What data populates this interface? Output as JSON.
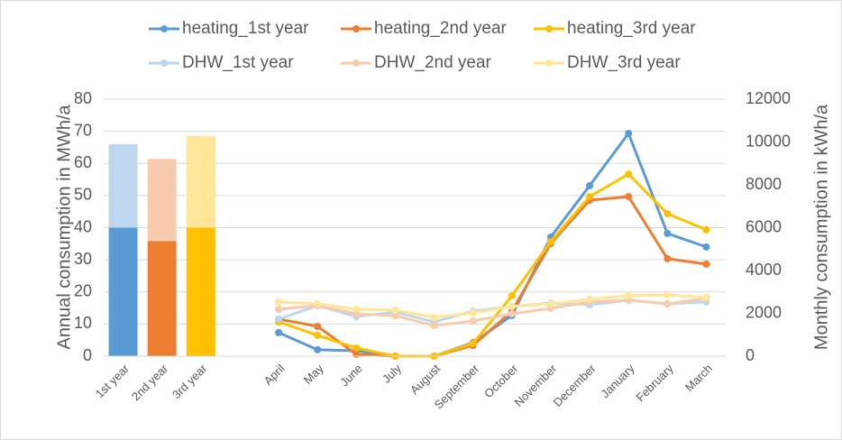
{
  "chart_data": {
    "type": "combo",
    "ylabel": "Annual consumption in MWh/a",
    "y2label": "Monthly consumption in kWh/a",
    "categories": [
      "1st year",
      "2nd year",
      "3rd year",
      null,
      "April",
      "May",
      "June",
      "July",
      "August",
      "September",
      "October",
      "November",
      "December",
      "January",
      "February",
      "March"
    ],
    "ylim": [
      0,
      80
    ],
    "yticks": [
      0,
      10,
      20,
      30,
      40,
      50,
      60,
      70,
      80
    ],
    "y2lim": [
      0,
      12000
    ],
    "y2ticks": [
      0,
      2000,
      4000,
      6000,
      8000,
      10000,
      12000
    ],
    "grid": true,
    "legend": "top",
    "bars": [
      {
        "values": [
          40,
          35.8,
          40
        ],
        "colors": [
          "#5b9bd5",
          "#ed7d31",
          "#ffc000"
        ]
      },
      {
        "values": [
          26,
          25.6,
          28.5
        ],
        "colors": [
          "#bdd7ee",
          "#f8cbad",
          "#ffe699"
        ]
      }
    ],
    "series": [
      {
        "name": "heating_1st year",
        "color": "#5b9bd5",
        "axis": "y2",
        "values": [
          null,
          null,
          null,
          null,
          1100,
          300,
          250,
          0,
          0,
          630,
          1900,
          5560,
          7960,
          10400,
          5730,
          5100
        ]
      },
      {
        "name": "heating_2nd year",
        "color": "#ed7d31",
        "axis": "y2",
        "values": [
          null,
          null,
          null,
          null,
          1730,
          1390,
          85,
          0,
          0,
          500,
          2100,
          5260,
          7280,
          7450,
          4550,
          4300
        ]
      },
      {
        "name": "heating_3rd year",
        "color": "#ffc000",
        "axis": "y2",
        "values": [
          null,
          null,
          null,
          null,
          1600,
          970,
          380,
          0,
          0,
          590,
          2820,
          5350,
          7450,
          8500,
          6650,
          5900
        ]
      },
      {
        "name": "DHW_1st year",
        "color": "#bdd7ee",
        "axis": "y2",
        "values": [
          null,
          null,
          null,
          null,
          1730,
          2360,
          1850,
          2060,
          1600,
          2100,
          2320,
          2480,
          2400,
          2610,
          2440,
          2530
        ]
      },
      {
        "name": "DHW_2nd year",
        "color": "#f8cbad",
        "axis": "y2",
        "values": [
          null,
          null,
          null,
          null,
          2190,
          2360,
          1980,
          1890,
          1430,
          1640,
          1980,
          2230,
          2530,
          2610,
          2440,
          2690
        ]
      },
      {
        "name": "DHW_3rd year",
        "color": "#ffe699",
        "axis": "y2",
        "values": [
          null,
          null,
          null,
          null,
          2530,
          2440,
          2190,
          2150,
          1810,
          2020,
          2320,
          2440,
          2650,
          2820,
          2860,
          2740
        ]
      }
    ]
  }
}
